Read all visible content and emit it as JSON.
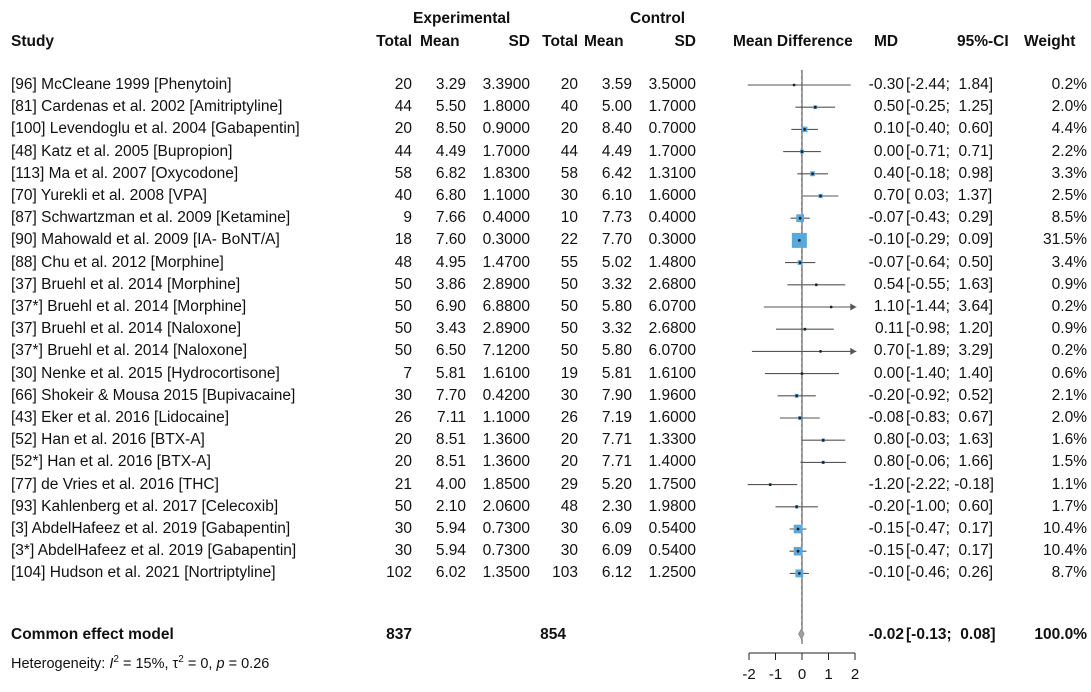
{
  "chart_data": {
    "type": "forest",
    "header": {
      "group1": "Experimental",
      "group2": "Control",
      "study": "Study",
      "total": "Total",
      "mean": "Mean",
      "sd": "SD",
      "plot": "Mean Difference",
      "md": "MD",
      "ci": "95%-CI",
      "weight": "Weight"
    },
    "studies": [
      {
        "study": "[96] McCleane 1999 [Phenytoin]",
        "e_total": "20",
        "e_mean": "3.29",
        "e_sd": "3.3900",
        "c_total": "20",
        "c_mean": "3.59",
        "c_sd": "3.5000",
        "md": -0.3,
        "lo": -2.44,
        "hi": 1.84,
        "md_text": "-0.30",
        "ci_text": "[-2.44;  1.84]",
        "weight": 0.2,
        "weight_text": "0.2%",
        "arrow_left": false,
        "arrow_right": false
      },
      {
        "study": "[81] Cardenas et al. 2002 [Amitriptyline]",
        "e_total": "44",
        "e_mean": "5.50",
        "e_sd": "1.8000",
        "c_total": "40",
        "c_mean": "5.00",
        "c_sd": "1.7000",
        "md": 0.5,
        "lo": -0.25,
        "hi": 1.25,
        "md_text": "0.50",
        "ci_text": "[-0.25;  1.25]",
        "weight": 2.0,
        "weight_text": "2.0%",
        "arrow_left": false,
        "arrow_right": false
      },
      {
        "study": "[100] Levendoglu et al. 2004 [Gabapentin]",
        "e_total": "20",
        "e_mean": "8.50",
        "e_sd": "0.9000",
        "c_total": "20",
        "c_mean": "8.40",
        "c_sd": "0.7000",
        "md": 0.1,
        "lo": -0.4,
        "hi": 0.6,
        "md_text": "0.10",
        "ci_text": "[-0.40;  0.60]",
        "weight": 4.4,
        "weight_text": "4.4%",
        "arrow_left": false,
        "arrow_right": false
      },
      {
        "study": "[48] Katz et al. 2005 [Bupropion]",
        "e_total": "44",
        "e_mean": "4.49",
        "e_sd": "1.7000",
        "c_total": "44",
        "c_mean": "4.49",
        "c_sd": "1.7000",
        "md": 0.0,
        "lo": -0.71,
        "hi": 0.71,
        "md_text": "0.00",
        "ci_text": "[-0.71;  0.71]",
        "weight": 2.2,
        "weight_text": "2.2%",
        "arrow_left": false,
        "arrow_right": false
      },
      {
        "study": "[113] Ma et al. 2007 [Oxycodone]",
        "e_total": "58",
        "e_mean": "6.82",
        "e_sd": "1.8300",
        "c_total": "58",
        "c_mean": "6.42",
        "c_sd": "1.3100",
        "md": 0.4,
        "lo": -0.18,
        "hi": 0.98,
        "md_text": "0.40",
        "ci_text": "[-0.18;  0.98]",
        "weight": 3.3,
        "weight_text": "3.3%",
        "arrow_left": false,
        "arrow_right": false
      },
      {
        "study": "[70] Yurekli et al. 2008 [VPA]",
        "e_total": "40",
        "e_mean": "6.80",
        "e_sd": "1.1000",
        "c_total": "30",
        "c_mean": "6.10",
        "c_sd": "1.6000",
        "md": 0.7,
        "lo": 0.03,
        "hi": 1.37,
        "md_text": "0.70",
        "ci_text": "[ 0.03;  1.37]",
        "weight": 2.5,
        "weight_text": "2.5%",
        "arrow_left": false,
        "arrow_right": false
      },
      {
        "study": "[87] Schwartzman et al. 2009 [Ketamine]",
        "e_total": "9",
        "e_mean": "7.66",
        "e_sd": "0.4000",
        "c_total": "10",
        "c_mean": "7.73",
        "c_sd": "0.4000",
        "md": -0.07,
        "lo": -0.43,
        "hi": 0.29,
        "md_text": "-0.07",
        "ci_text": "[-0.43;  0.29]",
        "weight": 8.5,
        "weight_text": "8.5%",
        "arrow_left": false,
        "arrow_right": false
      },
      {
        "study": "[90] Mahowald et al. 2009 [IA- BoNT/A]",
        "e_total": "18",
        "e_mean": "7.60",
        "e_sd": "0.3000",
        "c_total": "22",
        "c_mean": "7.70",
        "c_sd": "0.3000",
        "md": -0.1,
        "lo": -0.29,
        "hi": 0.09,
        "md_text": "-0.10",
        "ci_text": "[-0.29;  0.09]",
        "weight": 31.5,
        "weight_text": "31.5%",
        "arrow_left": false,
        "arrow_right": false
      },
      {
        "study": "[88] Chu et al. 2012 [Morphine]",
        "e_total": "48",
        "e_mean": "4.95",
        "e_sd": "1.4700",
        "c_total": "55",
        "c_mean": "5.02",
        "c_sd": "1.4800",
        "md": -0.07,
        "lo": -0.64,
        "hi": 0.5,
        "md_text": "-0.07",
        "ci_text": "[-0.64;  0.50]",
        "weight": 3.4,
        "weight_text": "3.4%",
        "arrow_left": false,
        "arrow_right": false
      },
      {
        "study": "[37] Bruehl et al. 2014 [Morphine]",
        "e_total": "50",
        "e_mean": "3.86",
        "e_sd": "2.8900",
        "c_total": "50",
        "c_mean": "3.32",
        "c_sd": "2.6800",
        "md": 0.54,
        "lo": -0.55,
        "hi": 1.63,
        "md_text": "0.54",
        "ci_text": "[-0.55;  1.63]",
        "weight": 0.9,
        "weight_text": "0.9%",
        "arrow_left": false,
        "arrow_right": false
      },
      {
        "study": "[37*] Bruehl et al. 2014 [Morphine]",
        "e_total": "50",
        "e_mean": "6.90",
        "e_sd": "6.8800",
        "c_total": "50",
        "c_mean": "5.80",
        "c_sd": "6.0700",
        "md": 1.1,
        "lo": -1.44,
        "hi": 3.64,
        "md_text": "1.10",
        "ci_text": "[-1.44;  3.64]",
        "weight": 0.2,
        "weight_text": "0.2%",
        "arrow_left": false,
        "arrow_right": true
      },
      {
        "study": "[37] Bruehl et al. 2014 [Naloxone]",
        "e_total": "50",
        "e_mean": "3.43",
        "e_sd": "2.8900",
        "c_total": "50",
        "c_mean": "3.32",
        "c_sd": "2.6800",
        "md": 0.11,
        "lo": -0.98,
        "hi": 1.2,
        "md_text": "0.11",
        "ci_text": "[-0.98;  1.20]",
        "weight": 0.9,
        "weight_text": "0.9%",
        "arrow_left": false,
        "arrow_right": false
      },
      {
        "study": "[37*] Bruehl et al. 2014 [Naloxone]",
        "e_total": "50",
        "e_mean": "6.50",
        "e_sd": "7.1200",
        "c_total": "50",
        "c_mean": "5.80",
        "c_sd": "6.0700",
        "md": 0.7,
        "lo": -1.89,
        "hi": 3.29,
        "md_text": "0.70",
        "ci_text": "[-1.89;  3.29]",
        "weight": 0.2,
        "weight_text": "0.2%",
        "arrow_left": false,
        "arrow_right": true
      },
      {
        "study": "[30] Nenke et al. 2015 [Hydrocortisone]",
        "e_total": "7",
        "e_mean": "5.81",
        "e_sd": "1.6100",
        "c_total": "19",
        "c_mean": "5.81",
        "c_sd": "1.6100",
        "md": 0.0,
        "lo": -1.4,
        "hi": 1.4,
        "md_text": "0.00",
        "ci_text": "[-1.40;  1.40]",
        "weight": 0.6,
        "weight_text": "0.6%",
        "arrow_left": false,
        "arrow_right": false
      },
      {
        "study": "[66] Shokeir & Mousa 2015 [Bupivacaine]",
        "e_total": "30",
        "e_mean": "7.70",
        "e_sd": "0.4200",
        "c_total": "30",
        "c_mean": "7.90",
        "c_sd": "1.9600",
        "md": -0.2,
        "lo": -0.92,
        "hi": 0.52,
        "md_text": "-0.20",
        "ci_text": "[-0.92;  0.52]",
        "weight": 2.1,
        "weight_text": "2.1%",
        "arrow_left": false,
        "arrow_right": false
      },
      {
        "study": "[43] Eker et al. 2016 [Lidocaine]",
        "e_total": "26",
        "e_mean": "7.11",
        "e_sd": "1.1000",
        "c_total": "26",
        "c_mean": "7.19",
        "c_sd": "1.6000",
        "md": -0.08,
        "lo": -0.83,
        "hi": 0.67,
        "md_text": "-0.08",
        "ci_text": "[-0.83;  0.67]",
        "weight": 2.0,
        "weight_text": "2.0%",
        "arrow_left": false,
        "arrow_right": false
      },
      {
        "study": "[52] Han et al. 2016 [BTX-A]",
        "e_total": "20",
        "e_mean": "8.51",
        "e_sd": "1.3600",
        "c_total": "20",
        "c_mean": "7.71",
        "c_sd": "1.3300",
        "md": 0.8,
        "lo": -0.03,
        "hi": 1.63,
        "md_text": "0.80",
        "ci_text": "[-0.03;  1.63]",
        "weight": 1.6,
        "weight_text": "1.6%",
        "arrow_left": false,
        "arrow_right": false
      },
      {
        "study": "[52*] Han et al. 2016 [BTX-A]",
        "e_total": "20",
        "e_mean": "8.51",
        "e_sd": "1.3600",
        "c_total": "20",
        "c_mean": "7.71",
        "c_sd": "1.4000",
        "md": 0.8,
        "lo": -0.06,
        "hi": 1.66,
        "md_text": "0.80",
        "ci_text": "[-0.06;  1.66]",
        "weight": 1.5,
        "weight_text": "1.5%",
        "arrow_left": false,
        "arrow_right": false
      },
      {
        "study": "[77] de Vries et al. 2016 [THC]",
        "e_total": "21",
        "e_mean": "4.00",
        "e_sd": "1.8500",
        "c_total": "29",
        "c_mean": "5.20",
        "c_sd": "1.7500",
        "md": -1.2,
        "lo": -2.22,
        "hi": -0.18,
        "md_text": "-1.20",
        "ci_text": "[-2.22; -0.18]",
        "weight": 1.1,
        "weight_text": "1.1%",
        "arrow_left": false,
        "arrow_right": false
      },
      {
        "study": "[93] Kahlenberg et al. 2017 [Celecoxib]",
        "e_total": "50",
        "e_mean": "2.10",
        "e_sd": "2.0600",
        "c_total": "48",
        "c_mean": "2.30",
        "c_sd": "1.9800",
        "md": -0.2,
        "lo": -1.0,
        "hi": 0.6,
        "md_text": "-0.20",
        "ci_text": "[-1.00;  0.60]",
        "weight": 1.7,
        "weight_text": "1.7%",
        "arrow_left": false,
        "arrow_right": false
      },
      {
        "study": "[3] AbdelHafeez et al. 2019 [Gabapentin]",
        "e_total": "30",
        "e_mean": "5.94",
        "e_sd": "0.7300",
        "c_total": "30",
        "c_mean": "6.09",
        "c_sd": "0.5400",
        "md": -0.15,
        "lo": -0.47,
        "hi": 0.17,
        "md_text": "-0.15",
        "ci_text": "[-0.47;  0.17]",
        "weight": 10.4,
        "weight_text": "10.4%",
        "arrow_left": false,
        "arrow_right": false
      },
      {
        "study": "[3*] AbdelHafeez et al. 2019 [Gabapentin]",
        "e_total": "30",
        "e_mean": "5.94",
        "e_sd": "0.7300",
        "c_total": "30",
        "c_mean": "6.09",
        "c_sd": "0.5400",
        "md": -0.15,
        "lo": -0.47,
        "hi": 0.17,
        "md_text": "-0.15",
        "ci_text": "[-0.47;  0.17]",
        "weight": 10.4,
        "weight_text": "10.4%",
        "arrow_left": false,
        "arrow_right": false
      },
      {
        "study": "[104] Hudson et al. 2021 [Nortriptyline]",
        "e_total": "102",
        "e_mean": "6.02",
        "e_sd": "1.3500",
        "c_total": "103",
        "c_mean": "6.12",
        "c_sd": "1.2500",
        "md": -0.1,
        "lo": -0.46,
        "hi": 0.26,
        "md_text": "-0.10",
        "ci_text": "[-0.46;  0.26]",
        "weight": 8.7,
        "weight_text": "8.7%",
        "arrow_left": false,
        "arrow_right": false
      }
    ],
    "summary": {
      "label": "Common effect model",
      "e_total": "837",
      "c_total": "854",
      "md": -0.02,
      "lo": -0.13,
      "hi": 0.08,
      "md_text": "-0.02",
      "ci_text": "[-0.13;  0.08]",
      "weight_text": "100.0%"
    },
    "heterogeneity": {
      "prefix": "Heterogeneity: ",
      "i2_symbol": "I",
      "i2_value": " = 15%, ",
      "tau2_symbol": "τ",
      "tau2_value": " = 0, ",
      "p_symbol": "p",
      "p_value": " = 0.26"
    },
    "axis": {
      "xlim": [
        -2,
        2
      ],
      "ticks": [
        -2,
        -1,
        0,
        1,
        2
      ],
      "tick_labels": [
        "-2",
        "-1",
        "0",
        "1",
        "2"
      ]
    },
    "colors": {
      "box": "#5aa9de",
      "line": "#555555",
      "diamond": "#a0a0a0",
      "reference_line": "#444444",
      "text": "#111111"
    }
  }
}
